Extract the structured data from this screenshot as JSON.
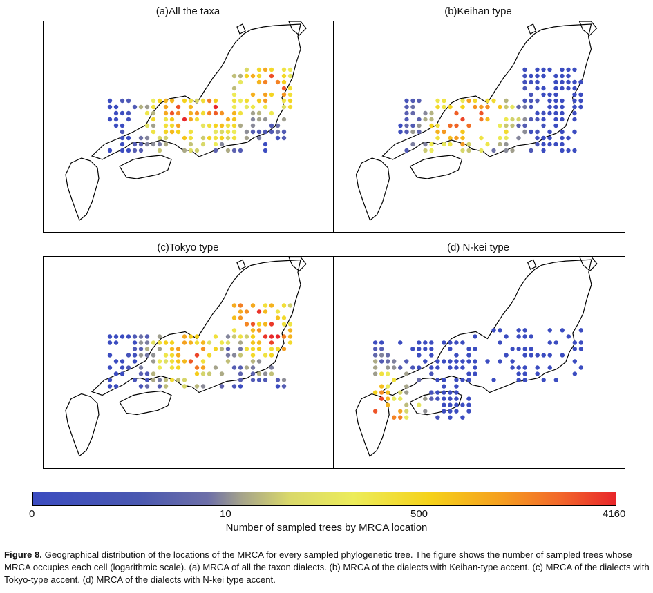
{
  "chart_data": [
    {
      "type": "map",
      "title": "(a)All the taxa"
    },
    {
      "type": "map",
      "title": "(b)Keihan type"
    },
    {
      "type": "map",
      "title": "(c)Tokyo type"
    },
    {
      "type": "map",
      "title": "(d) N-kei type"
    }
  ],
  "colorbar": {
    "ticks": [
      "0",
      "10",
      "500",
      "4160"
    ],
    "label": "Number of sampled trees by MRCA location",
    "colors": [
      "#3b4cc0",
      "#a7a58a",
      "#ecec5a",
      "#f5d21a",
      "#e8262a"
    ]
  },
  "caption": {
    "label": "Figure 8.",
    "text": " Geographical distribution of the locations of the MRCA for every sampled phylogenetic tree. The figure shows the number of sampled trees whose MRCA occupies each cell (logarithmic scale). (a) MRCA of all the taxon dialects. (b) MRCA of the dialects with Keihan-type accent. (c) MRCA of the dialects with Tokyo-type accent. (d) MRCA of the dialects with N-kei type accent."
  }
}
